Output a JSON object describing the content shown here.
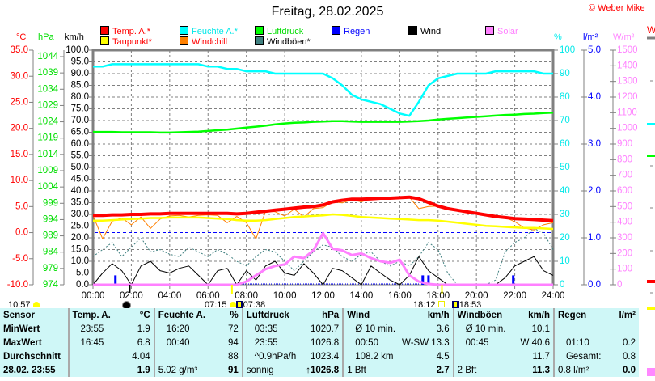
{
  "header": {
    "title": "Freitag, 28.02.2025",
    "copyright": "© Weber Mike",
    "right_cut_label": "W"
  },
  "units": {
    "temp": "°C",
    "pressure": "hPa",
    "speed": "km/h",
    "humidity": "%",
    "rain": "l/m²",
    "solar": "W/m²"
  },
  "legend": [
    {
      "label": "Temp. A.*",
      "color": "#ff0000",
      "text_color": "#ff0000"
    },
    {
      "label": "Taupunkt*",
      "color": "#ffff00",
      "text_color": "#ff0000"
    },
    {
      "label": "Feuchte A.*",
      "color": "#00ffff",
      "text_color": "#00e8e8"
    },
    {
      "label": "Windchill",
      "color": "#ff8000",
      "text_color": "#ff0000"
    },
    {
      "label": "Luftdruck",
      "color": "#00ff00",
      "text_color": "#00dd00"
    },
    {
      "label": "Windböen*",
      "color": "#408080",
      "text_color": "#000000"
    },
    {
      "label": "Regen",
      "color": "#0000ff",
      "text_color": "#0000ff"
    },
    {
      "label": "Wind",
      "color": "#000000",
      "text_color": "#000000"
    },
    {
      "label": "Solar",
      "color": "#ff80ff",
      "text_color": "#ff80ff"
    }
  ],
  "astro": {
    "moonrise": "10:57",
    "sunrise": "07:15",
    "civil_dawn": "07:38",
    "sunset": "18:12",
    "civil_dusk": "18:53"
  },
  "chart_data": {
    "type": "line",
    "title": "Freitag, 28.02.2025",
    "x_interval_hours": 0.5,
    "xlim": [
      0,
      24
    ],
    "x_tick_labels": [
      "00:00",
      "02:00",
      "04:00",
      "06:00",
      "08:00",
      "10:00",
      "12:00",
      "14:00",
      "16:00",
      "18:00",
      "20:00",
      "22:00",
      "24:00"
    ],
    "axes": {
      "temp": {
        "range": [
          -10,
          35
        ],
        "ticks": [
          "35.0",
          "30.0",
          "25.0",
          "20.0",
          "15.0",
          "10.0",
          "5.0",
          "0.0",
          "-5.0",
          "-10.0"
        ]
      },
      "pressure": {
        "range": [
          974,
          1044
        ],
        "ticks": [
          "1044",
          "1039",
          "1034",
          "1029",
          "1024",
          "1019",
          "1014",
          "1009",
          "1004",
          "999",
          "994",
          "989",
          "984",
          "979",
          "974"
        ]
      },
      "speed": {
        "range": [
          0,
          100
        ],
        "ticks": [
          "100.0",
          "95.0",
          "90.0",
          "85.0",
          "80.0",
          "75.0",
          "70.0",
          "65.0",
          "60.0",
          "55.0",
          "50.0",
          "45.0",
          "40.0",
          "35.0",
          "30.0",
          "25.0",
          "20.0",
          "15.0",
          "10.0",
          "5.0",
          "0.0"
        ]
      },
      "humidity": {
        "range": [
          0,
          100
        ],
        "ticks": [
          "100",
          "90",
          "80",
          "70",
          "60",
          "50",
          "40",
          "30",
          "20",
          "10",
          "0"
        ]
      },
      "rain": {
        "range": [
          0,
          5
        ],
        "ticks": [
          "5.0",
          "4.0",
          "3.0",
          "2.0",
          "1.0",
          "0.0"
        ]
      },
      "solar": {
        "range": [
          0,
          1500
        ],
        "ticks": [
          "1500",
          "1400",
          "1300",
          "1200",
          "1100",
          "1000",
          "900",
          "800",
          "700",
          "600",
          "500",
          "400",
          "300",
          "200",
          "100",
          "0"
        ]
      }
    },
    "series": [
      {
        "name": "Temp. A.",
        "axis": "temp",
        "color": "#ff0000",
        "width": 4,
        "values": [
          3.3,
          3.3,
          3.4,
          3.4,
          3.5,
          3.5,
          3.6,
          3.6,
          3.7,
          3.7,
          3.7,
          3.7,
          3.7,
          3.7,
          3.7,
          3.6,
          3.7,
          3.9,
          4.1,
          4.3,
          4.5,
          4.7,
          4.9,
          5.0,
          5.3,
          5.9,
          6.2,
          6.4,
          6.4,
          6.5,
          6.6,
          6.6,
          6.7,
          6.8,
          6.5,
          5.8,
          5.1,
          4.6,
          4.3,
          4.0,
          3.7,
          3.4,
          3.1,
          2.9,
          2.7,
          2.6,
          2.5,
          2.4,
          2.3
        ]
      },
      {
        "name": "Taupunkt",
        "axis": "temp",
        "color": "#ffff00",
        "width": 2.5,
        "values": [
          2.3,
          2.3,
          2.4,
          2.5,
          2.6,
          2.7,
          2.8,
          2.8,
          2.9,
          2.9,
          2.9,
          2.9,
          2.8,
          2.7,
          2.6,
          2.4,
          2.3,
          2.3,
          2.4,
          2.6,
          2.8,
          3.0,
          3.1,
          3.2,
          3.3,
          3.5,
          3.4,
          3.2,
          3.0,
          2.9,
          2.8,
          2.7,
          2.6,
          2.5,
          2.4,
          2.4,
          2.3,
          2.1,
          1.9,
          1.7,
          1.5,
          1.3,
          1.2,
          1.1,
          1.0,
          0.9,
          0.9,
          0.8,
          0.7
        ]
      },
      {
        "name": "Windchill",
        "axis": "temp",
        "color": "#ff8000",
        "width": 1,
        "values": [
          3.3,
          -1.2,
          2.2,
          2.8,
          1.5,
          3.0,
          0.8,
          2.6,
          3.2,
          3.3,
          3.0,
          3.3,
          3.4,
          3.3,
          1.9,
          3.1,
          1.9,
          -1.2,
          4.1,
          4.0,
          3.2,
          4.5,
          3.0,
          4.6,
          4.8,
          5.9,
          5.7,
          6.3,
          5.9,
          6.5,
          6.6,
          6.6,
          6.7,
          6.8,
          4.6,
          5.0,
          5.1,
          4.6,
          4.3,
          4.0,
          3.7,
          3.4,
          3.1,
          2.9,
          2.1,
          0.9,
          0.5,
          1.5,
          1.9
        ]
      },
      {
        "name": "Feuchte A.",
        "axis": "humidity",
        "color": "#00ffff",
        "width": 2.5,
        "values": [
          93,
          93,
          94,
          94,
          94,
          94,
          94,
          94,
          94,
          94,
          94,
          94,
          93,
          93,
          92,
          92,
          91,
          91,
          91,
          90,
          90,
          90,
          90,
          90,
          90,
          88,
          85,
          81,
          79,
          78,
          77,
          75,
          73,
          72,
          78,
          85,
          88,
          89,
          90,
          90,
          90,
          90,
          91,
          91,
          91,
          91,
          91,
          90,
          90
        ]
      },
      {
        "name": "Luftdruck",
        "axis": "pressure",
        "color": "#00ff00",
        "width": 2.5,
        "values": [
          1020.9,
          1020.9,
          1020.9,
          1020.8,
          1020.8,
          1020.8,
          1020.8,
          1020.7,
          1020.7,
          1020.8,
          1020.9,
          1021.0,
          1021.2,
          1021.4,
          1021.6,
          1021.9,
          1022.2,
          1022.5,
          1022.8,
          1023.2,
          1023.5,
          1023.7,
          1023.8,
          1024.0,
          1024.1,
          1024.2,
          1024.2,
          1024.1,
          1024.0,
          1024.0,
          1024.0,
          1024.0,
          1024.0,
          1024.1,
          1024.2,
          1024.4,
          1024.7,
          1024.9,
          1025.1,
          1025.3,
          1025.5,
          1025.7,
          1025.9,
          1026.1,
          1026.2,
          1026.4,
          1026.5,
          1026.7,
          1026.8
        ]
      },
      {
        "name": "Windböen",
        "axis": "speed",
        "color": "#408080",
        "width": 1,
        "dash": "2,2",
        "values": [
          12,
          15,
          18,
          12,
          16,
          20,
          14,
          15,
          13,
          12,
          16,
          14,
          12,
          15,
          13,
          10,
          8,
          12,
          15,
          14,
          10,
          6,
          10,
          14,
          17,
          16,
          12,
          10,
          13,
          14,
          10,
          8,
          10,
          8,
          12,
          18,
          15,
          5,
          0,
          0,
          0,
          0,
          2,
          14,
          18,
          20,
          24,
          22,
          15
        ]
      },
      {
        "name": "Wind",
        "axis": "speed",
        "color": "#000000",
        "width": 1,
        "values": [
          0,
          5,
          9,
          6,
          0,
          8,
          10,
          6,
          5,
          7,
          8,
          4,
          0,
          6,
          7,
          0,
          6,
          2,
          8,
          10,
          5,
          4,
          9,
          5,
          0,
          7,
          6,
          3,
          0,
          8,
          5,
          2,
          0,
          4,
          12,
          6,
          3,
          0,
          0,
          0,
          0,
          0,
          0,
          3,
          8,
          10,
          12,
          6,
          4
        ]
      },
      {
        "name": "Solar",
        "axis": "solar",
        "color": "#ff80ff",
        "width": 3,
        "values": [
          0,
          0,
          0,
          0,
          0,
          0,
          0,
          0,
          0,
          0,
          0,
          0,
          0,
          0,
          0,
          0,
          20,
          60,
          100,
          120,
          130,
          180,
          170,
          220,
          330,
          230,
          220,
          190,
          200,
          170,
          150,
          140,
          160,
          60,
          20,
          5,
          0,
          0,
          0,
          0,
          0,
          0,
          0,
          0,
          0,
          0,
          0,
          0,
          0
        ]
      }
    ],
    "rain_bars": [
      {
        "time": "01:10",
        "hour": 1.17,
        "value": 0.2
      },
      {
        "time": "17:12",
        "hour": 17.2,
        "value": 0.2
      },
      {
        "time": "17:30",
        "hour": 17.5,
        "value": 0.2
      },
      {
        "time": "21:55",
        "hour": 21.92,
        "value": 0.2
      }
    ],
    "reference_line": {
      "axis": "temp",
      "value": 0,
      "color": "#0000ff"
    }
  },
  "table": {
    "headers": [
      "Sensor",
      "Temp. A.",
      "°C",
      "Feuchte A.",
      "%",
      "Luftdruck",
      "hPa",
      "Wind",
      "km/h",
      "Windböen",
      "km/h",
      "Regen",
      "l/m²"
    ],
    "rows": [
      [
        "MinWert",
        "23:55",
        "1.9",
        "16:20",
        "72",
        "03:35",
        "1020.7",
        "Ø 10 min.",
        "3.6",
        "Ø 10 min.",
        "10.1",
        "",
        ""
      ],
      [
        "MaxWert",
        "16:45",
        "6.8",
        "00:40",
        "94",
        "23:55",
        "1026.8",
        "00:50",
        "W-SW 13.3",
        "00:45",
        "W 40.6",
        "01:10",
        "0.2"
      ],
      [
        "Durchschnitt",
        "",
        "4.04",
        "",
        "88",
        "^0.9hPa/h",
        "1023.4",
        "108.2 km",
        "4.5",
        "",
        "11.7",
        "Gesamt:",
        "0.8"
      ],
      [
        "28.02. 23:55",
        "",
        "1.9",
        "5.02 g/m³",
        "91",
        "sonnig",
        "1026.8",
        "1 Bft",
        "2.7",
        "2 Bft",
        "11.3",
        "0.8 l/m²",
        "0.0"
      ]
    ],
    "trend_arrow": "↑"
  }
}
